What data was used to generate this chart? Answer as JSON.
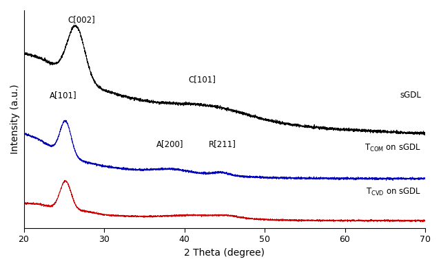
{
  "xlabel": "2 Theta (degree)",
  "ylabel": "Intensity (a.u.)",
  "xlim": [
    20,
    70
  ],
  "x_ticks": [
    20,
    30,
    40,
    50,
    60,
    70
  ],
  "label_sgdl": "sGDL",
  "label_tcom": "T$_{COM}$ on sGDL",
  "label_tcvd": "T$_{CVD}$ on sGDL",
  "ann_c002": "C[002]",
  "ann_a101": "A[101]",
  "ann_c101": "C[101]",
  "ann_a200": "A[200]",
  "ann_r211": "R[211]",
  "color_black": "#000000",
  "color_blue": "#0000bb",
  "color_red": "#cc0000"
}
